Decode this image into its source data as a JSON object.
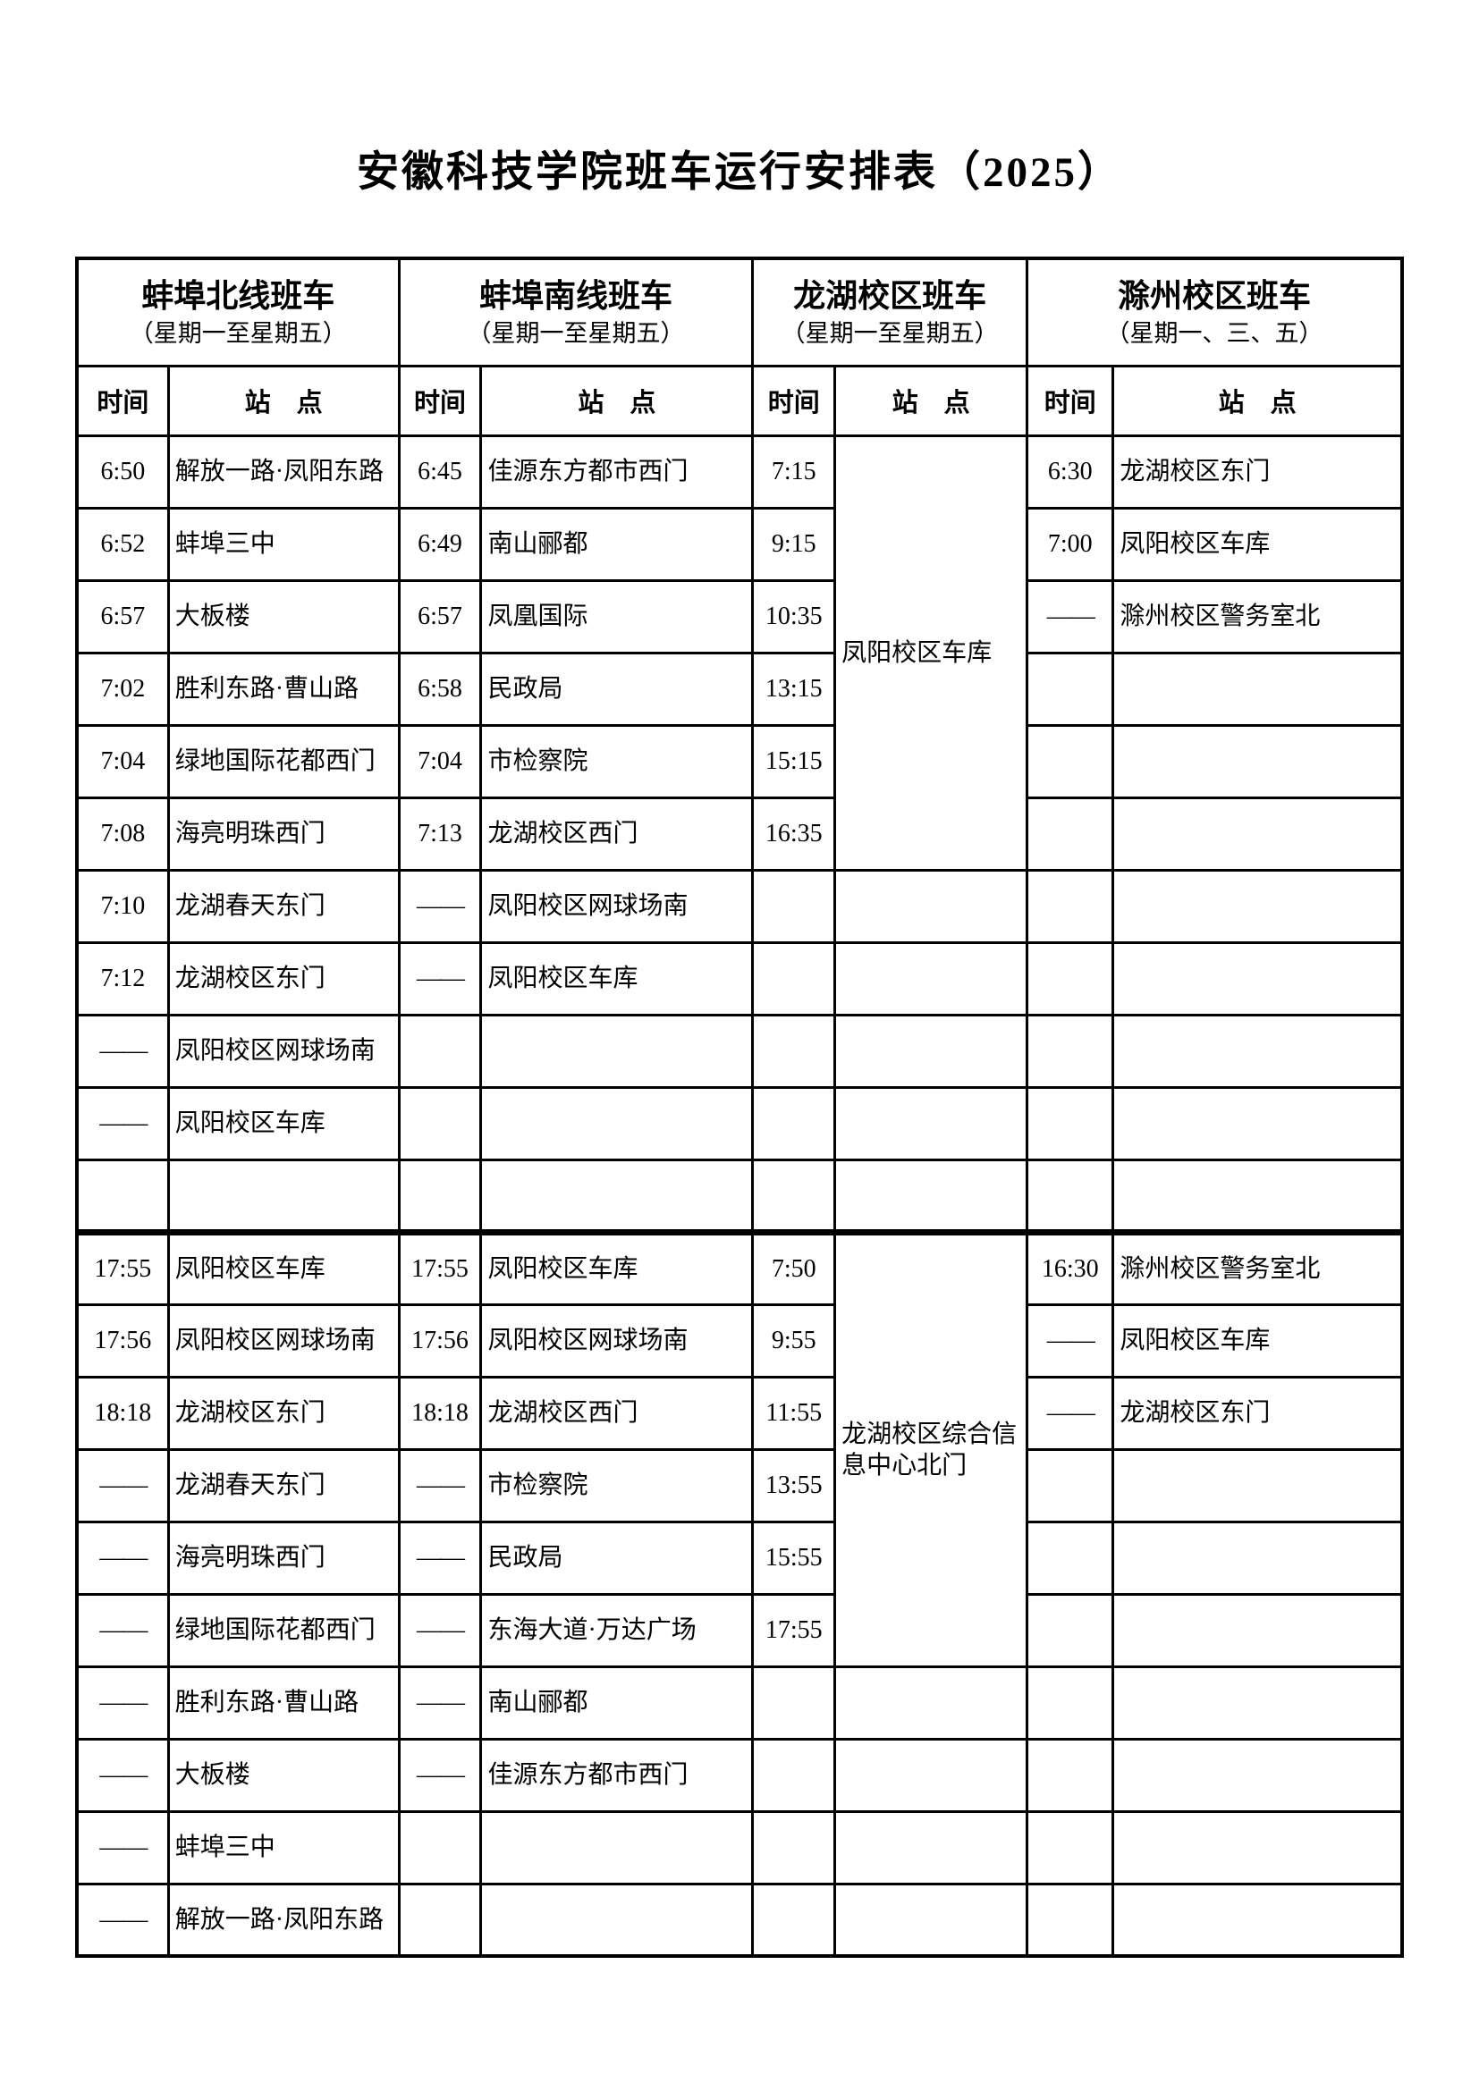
{
  "page": {
    "title": "安徽科技学院班车运行安排表（2025）"
  },
  "table": {
    "groups": [
      {
        "name": "蚌埠北线班车",
        "days": "（星期一至星期五）",
        "time_label": "时间",
        "station_label": "站　点"
      },
      {
        "name": "蚌埠南线班车",
        "days": "（星期一至星期五）",
        "time_label": "时间",
        "station_label": "站　点"
      },
      {
        "name": "龙湖校区班车",
        "days": "（星期一至星期五）",
        "time_label": "时间",
        "station_label": "站　点"
      },
      {
        "name": "滁州校区班车",
        "days": "（星期一、三、五）",
        "time_label": "时间",
        "station_label": "站　点"
      }
    ],
    "separator_after_row": 11,
    "rows": [
      [
        "6:50",
        "解放一路·凤阳东路",
        "6:45",
        "佳源东方都市西门",
        "7:15",
        {
          "v": "凤阳校区车库",
          "rowspan": 6
        },
        "6:30",
        "龙湖校区东门"
      ],
      [
        "6:52",
        "蚌埠三中",
        "6:49",
        "南山郦都",
        "9:15",
        null,
        "7:00",
        "凤阳校区车库"
      ],
      [
        "6:57",
        "大板楼",
        "6:57",
        "凤凰国际",
        "10:35",
        null,
        "——",
        "滁州校区警务室北"
      ],
      [
        "7:02",
        "胜利东路·曹山路",
        "6:58",
        "民政局",
        "13:15",
        null,
        "",
        ""
      ],
      [
        "7:04",
        "绿地国际花都西门",
        "7:04",
        "市检察院",
        "15:15",
        null,
        "",
        ""
      ],
      [
        "7:08",
        "海亮明珠西门",
        "7:13",
        "龙湖校区西门",
        "16:35",
        null,
        "",
        ""
      ],
      [
        "7:10",
        "龙湖春天东门",
        "——",
        "凤阳校区网球场南",
        "",
        "",
        "",
        ""
      ],
      [
        "7:12",
        "龙湖校区东门",
        "——",
        "凤阳校区车库",
        "",
        "",
        "",
        ""
      ],
      [
        "——",
        "凤阳校区网球场南",
        "",
        "",
        "",
        "",
        "",
        ""
      ],
      [
        "——",
        "凤阳校区车库",
        "",
        "",
        "",
        "",
        "",
        ""
      ],
      [
        "",
        "",
        "",
        "",
        "",
        "",
        "",
        ""
      ],
      [
        "17:55",
        "凤阳校区车库",
        "17:55",
        "凤阳校区车库",
        "7:50",
        {
          "v": "龙湖校区综合信息中心北门",
          "rowspan": 6
        },
        "16:30",
        "滁州校区警务室北"
      ],
      [
        "17:56",
        "凤阳校区网球场南",
        "17:56",
        "凤阳校区网球场南",
        "9:55",
        null,
        "——",
        "凤阳校区车库"
      ],
      [
        "18:18",
        "龙湖校区东门",
        "18:18",
        "龙湖校区西门",
        "11:55",
        null,
        "——",
        "龙湖校区东门"
      ],
      [
        "——",
        "龙湖春天东门",
        "——",
        "市检察院",
        "13:55",
        null,
        "",
        ""
      ],
      [
        "——",
        "海亮明珠西门",
        "——",
        "民政局",
        "15:55",
        null,
        "",
        ""
      ],
      [
        "——",
        "绿地国际花都西门",
        "——",
        "东海大道·万达广场",
        "17:55",
        null,
        "",
        ""
      ],
      [
        "——",
        "胜利东路·曹山路",
        "——",
        "南山郦都",
        "",
        "",
        "",
        ""
      ],
      [
        "——",
        "大板楼",
        "——",
        "佳源东方都市西门",
        "",
        "",
        "",
        ""
      ],
      [
        "——",
        "蚌埠三中",
        "",
        "",
        "",
        "",
        "",
        ""
      ],
      [
        "——",
        "解放一路·凤阳东路",
        "",
        "",
        "",
        "",
        "",
        ""
      ]
    ]
  }
}
